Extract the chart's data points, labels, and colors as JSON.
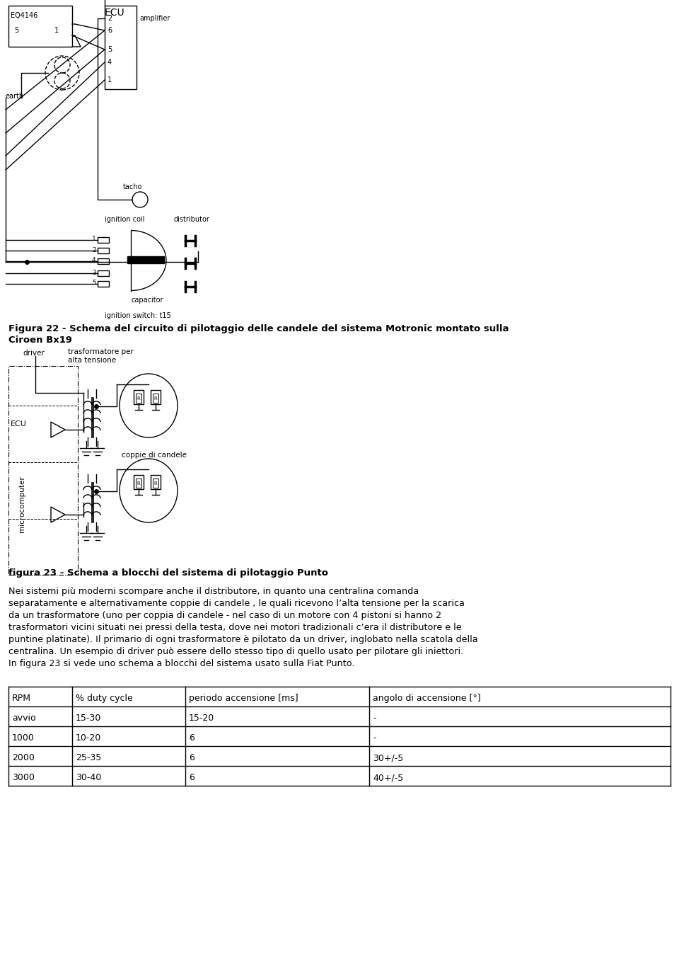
{
  "fig_width": 9.6,
  "fig_height": 13.59,
  "bg_color": "#ffffff",
  "fig22_caption_line1": "Figura 22 - Schema del circuito di pilotaggio delle candele del sistema Motronic montato sulla",
  "fig22_caption_line2": "Ciroen Bx19",
  "fig23_caption": "figura 23 - Schema a blocchi del sistema di pilotaggio Punto",
  "body_text_lines": [
    "Nei sistemi più moderni scompare anche il distributore, in quanto una centralina comanda",
    "separatamente e alternativamente coppie di candele , le quali ricevono l’alta tensione per la scarica",
    "da un trasformatore (uno per coppia di candele - nel caso di un motore con 4 pistoni si hanno 2",
    "trasformatori vicini situati nei pressi della testa, dove nei motori tradizionali c’era il distributore e le",
    "puntine platinate). Il primario di ogni trasformatore è pilotato da un driver, inglobato nella scatola della",
    "centralina. Un esempio di driver può essere dello stesso tipo di quello usato per pilotare gli iniettori.",
    "In figura 23 si vede uno schema a blocchi del sistema usato sulla Fiat Punto."
  ],
  "table_headers": [
    "RPM",
    "% duty cycle",
    "periodo accensione [ms]",
    "angolo di accensione [°]"
  ],
  "table_rows": [
    [
      "avvio",
      "15-30",
      "15-20",
      "-"
    ],
    [
      "1000",
      "10-20",
      "6",
      "-"
    ],
    [
      "2000",
      "25-35",
      "6",
      "30+/-5"
    ],
    [
      "3000",
      "30-40",
      "6",
      "40+/-5"
    ]
  ]
}
